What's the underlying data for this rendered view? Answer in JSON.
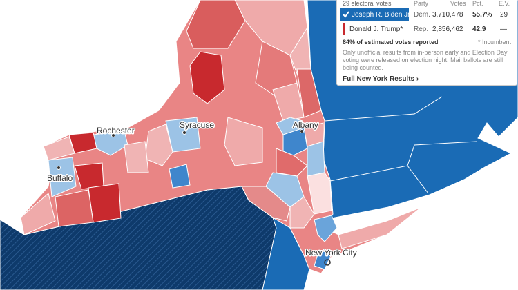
{
  "panel": {
    "subtitle": "29 electoral votes",
    "columns": [
      "Party",
      "Votes",
      "Pct.",
      "E.V."
    ],
    "rows": [
      {
        "candidate": "Joseph R. Biden Jr.",
        "party": "Dem.",
        "votes": "3,710,478",
        "pct": "55.7%",
        "ev": "29"
      },
      {
        "candidate": "Donald J. Trump*",
        "party": "Rep.",
        "votes": "2,856,462",
        "pct": "42.9",
        "ev": "—"
      }
    ],
    "reporting": "84% of estimated votes reported",
    "footnote": "* Incumbent",
    "note": "Only unofficial results from in-person early and Election Day voting were released on election night. Mail ballots are still being counted.",
    "link": "Full New York Results ›"
  },
  "map": {
    "cities": [
      "Rochester",
      "Syracuse",
      "Albany",
      "Buffalo",
      "New York City"
    ]
  }
}
